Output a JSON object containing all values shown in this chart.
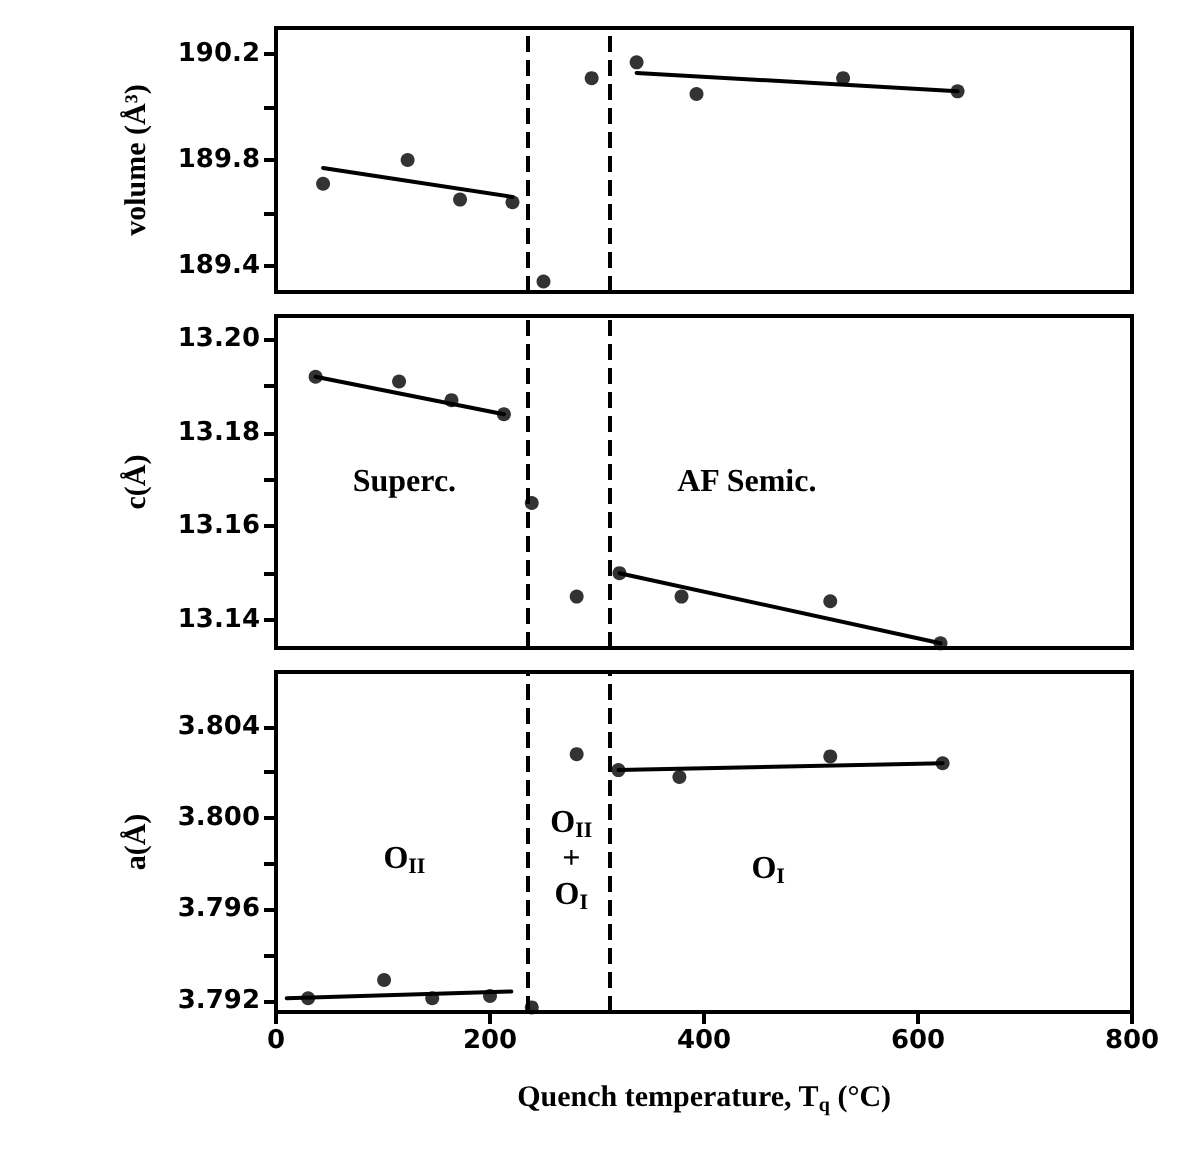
{
  "chart_data": [
    {
      "type": "scatter",
      "ylabel": "volume (Å³)",
      "xlim": [
        0,
        800
      ],
      "xticks": [
        0,
        200,
        400,
        600,
        800
      ],
      "ylim": [
        189.3,
        190.3
      ],
      "yticks": [
        189.4,
        {
          "value": 189.6,
          "label": null
        },
        189.8,
        {
          "value": 190.0,
          "label": null
        },
        190.2
      ],
      "tick_labels": "y",
      "grid": false,
      "marker": "circle",
      "series": [
        {
          "color": "#000000",
          "x": [
            44,
            123,
            172,
            221,
            250,
            295,
            337,
            393,
            530,
            637
          ],
          "values": [
            189.71,
            189.8,
            189.65,
            189.64,
            189.34,
            190.11,
            190.17,
            190.05,
            190.11,
            190.06
          ]
        },
        {
          "type": "line",
          "marker": "none",
          "color": "#000000",
          "x": [
            44,
            221
          ],
          "values": [
            189.77,
            189.66
          ]
        },
        {
          "type": "line",
          "marker": "none",
          "color": "#000000",
          "x": [
            337,
            637
          ],
          "values": [
            190.13,
            190.06
          ]
        }
      ],
      "ref_lines": [
        {
          "axis": "x",
          "value": 235,
          "line_style": "dashed",
          "color": "#000000"
        },
        {
          "axis": "x",
          "value": 312,
          "line_style": "dashed",
          "color": "#000000"
        }
      ]
    },
    {
      "type": "scatter",
      "ylabel": "c(Å)",
      "xlim": [
        0,
        800
      ],
      "xticks": [
        0,
        200,
        400,
        600,
        800
      ],
      "ylim": [
        13.134,
        13.205
      ],
      "yticks": [
        {
          "value": 13.14,
          "label": "13.14"
        },
        {
          "value": 13.15,
          "label": null
        },
        {
          "value": 13.16,
          "label": "13.16"
        },
        {
          "value": 13.17,
          "label": null
        },
        {
          "value": 13.18,
          "label": "13.18"
        },
        {
          "value": 13.19,
          "label": null
        },
        {
          "value": 13.2,
          "label": "13.20"
        }
      ],
      "tick_labels": "y",
      "grid": false,
      "marker": "circle",
      "annotations": [
        "Superc.",
        "AF Semic."
      ],
      "series": [
        {
          "color": "#000000",
          "x": [
            37,
            115,
            164,
            213,
            239,
            281,
            321,
            379,
            518,
            621
          ],
          "values": [
            13.192,
            13.191,
            13.187,
            13.184,
            13.165,
            13.145,
            13.15,
            13.145,
            13.144,
            13.135
          ]
        },
        {
          "type": "line",
          "marker": "none",
          "color": "#000000",
          "x": [
            37,
            213
          ],
          "values": [
            13.192,
            13.184
          ]
        },
        {
          "type": "line",
          "marker": "none",
          "color": "#000000",
          "x": [
            321,
            621
          ],
          "values": [
            13.15,
            13.135
          ]
        }
      ],
      "ref_lines": [
        {
          "axis": "x",
          "value": 235,
          "line_style": "dashed",
          "color": "#000000"
        },
        {
          "axis": "x",
          "value": 312,
          "line_style": "dashed",
          "color": "#000000"
        }
      ]
    },
    {
      "type": "scatter",
      "ylabel": "a(Å)",
      "xlabel": "Quench temperature, T$_{q}$ (°C)",
      "xlim": [
        0,
        800
      ],
      "xticks": [
        0,
        200,
        400,
        600,
        800
      ],
      "ylim": [
        3.7915,
        3.8064
      ],
      "yticks": [
        {
          "value": 3.792,
          "label": "3.792"
        },
        {
          "value": 3.794,
          "label": null
        },
        {
          "value": 3.796,
          "label": "3.796"
        },
        {
          "value": 3.798,
          "label": null
        },
        {
          "value": 3.8,
          "label": "3.800"
        },
        {
          "value": 3.802,
          "label": null
        },
        {
          "value": 3.804,
          "label": "3.804"
        }
      ],
      "grid": false,
      "marker": "circle",
      "annotations": [
        "O$_{II}$",
        "O$_{II}$\n+\nO$_{I}$",
        "O$_{I}$"
      ],
      "series": [
        {
          "color": "#000000",
          "x": [
            30,
            101,
            146,
            200,
            239,
            281,
            320,
            377,
            518,
            623
          ],
          "values": [
            3.7921,
            3.7929,
            3.7921,
            3.7922,
            3.7917,
            3.8028,
            3.8021,
            3.8018,
            3.8027,
            3.8024
          ]
        },
        {
          "type": "line",
          "marker": "none",
          "color": "#000000",
          "x": [
            10,
            220
          ],
          "values": [
            3.7921,
            3.7924
          ]
        },
        {
          "type": "line",
          "marker": "none",
          "color": "#000000",
          "x": [
            320,
            623
          ],
          "values": [
            3.8021,
            3.8024
          ]
        }
      ],
      "ref_lines": [
        {
          "axis": "x",
          "value": 235,
          "line_style": "dashed",
          "color": "#000000"
        },
        {
          "axis": "x",
          "value": 312,
          "line_style": "dashed",
          "color": "#000000"
        }
      ]
    }
  ]
}
